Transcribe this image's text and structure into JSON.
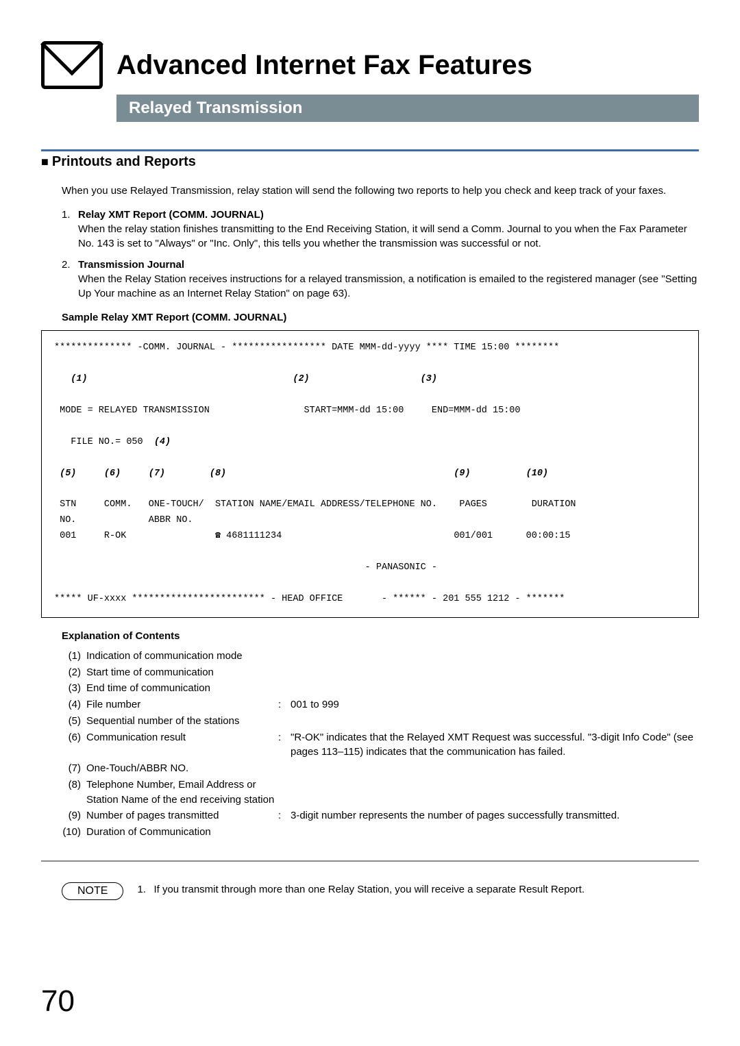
{
  "header": {
    "title": "Advanced Internet Fax Features",
    "subtitle": "Relayed Transmission"
  },
  "section": {
    "heading": "Printouts and Reports",
    "intro": "When you use Relayed Transmission, relay station will send the following two reports to help you check and keep track of your faxes.",
    "items": [
      {
        "num": "1.",
        "title": "Relay XMT Report (COMM. JOURNAL)",
        "body": "When the relay station finishes transmitting to the End Receiving Station, it will send a Comm. Journal to you when the Fax Parameter No. 143 is set to \"Always\" or \"Inc. Only\", this tells you whether the transmission was successful or not."
      },
      {
        "num": "2.",
        "title": "Transmission Journal",
        "body": "When the Relay Station receives instructions for a relayed transmission, a notification is emailed to the registered manager (see \"Setting Up Your machine as an Internet Relay Station\" on page 63)."
      }
    ],
    "sample_label": "Sample Relay XMT Report (COMM. JOURNAL)"
  },
  "report": {
    "line1": "************** -COMM. JOURNAL - ***************** DATE MMM-dd-yyyy **** TIME 15:00 ********",
    "marker_row": "   (1)                                     (2)                    (3)",
    "mode_line": " MODE = RELAYED TRANSMISSION                 START=MMM-dd 15:00     END=MMM-dd 15:00",
    "file_line": "   FILE NO.= 050  (4)",
    "col_markers": " (5)     (6)     (7)        (8)                                         (9)          (10)",
    "col_headers1": " STN     COMM.   ONE-TOUCH/  STATION NAME/EMAIL ADDRESS/TELEPHONE NO.    PAGES        DURATION",
    "col_headers2": " NO.             ABBR NO.",
    "data_row": " 001     R-OK                ☎ 4681111234                               001/001      00:00:15",
    "panasonic": "                                                        - PANASONIC -",
    "footer": "***** UF-xxxx ************************ - HEAD OFFICE       - ****** - 201 555 1212 - *******"
  },
  "explanation": {
    "label": "Explanation of Contents",
    "rows": [
      {
        "idx": "(1)",
        "label": "Indication of communication mode",
        "desc": ""
      },
      {
        "idx": "(2)",
        "label": "Start time of communication",
        "desc": ""
      },
      {
        "idx": "(3)",
        "label": "End time of communication",
        "desc": ""
      },
      {
        "idx": "(4)",
        "label": "File number",
        "desc": "001 to 999"
      },
      {
        "idx": "(5)",
        "label": "Sequential number of the stations",
        "desc": ""
      },
      {
        "idx": "(6)",
        "label": "Communication result",
        "desc": "\"R-OK\" indicates that the Relayed XMT Request was successful. \"3-digit Info Code\" (see pages 113–115) indicates that the communication has failed."
      },
      {
        "idx": "(7)",
        "label": "One-Touch/ABBR NO.",
        "desc": ""
      },
      {
        "idx": "(8)",
        "label": "Telephone Number, Email Address or Station Name of the end receiving station",
        "desc": ""
      },
      {
        "idx": "(9)",
        "label": "Number of pages transmitted",
        "desc": "3-digit number represents the number of pages successfully transmitted."
      },
      {
        "idx": "(10)",
        "label": "Duration of Communication",
        "desc": ""
      }
    ]
  },
  "note": {
    "pill": "NOTE",
    "num": "1.",
    "text": "If you transmit through more than one Relay Station, you will receive a separate Result Report."
  },
  "page_number": "70"
}
